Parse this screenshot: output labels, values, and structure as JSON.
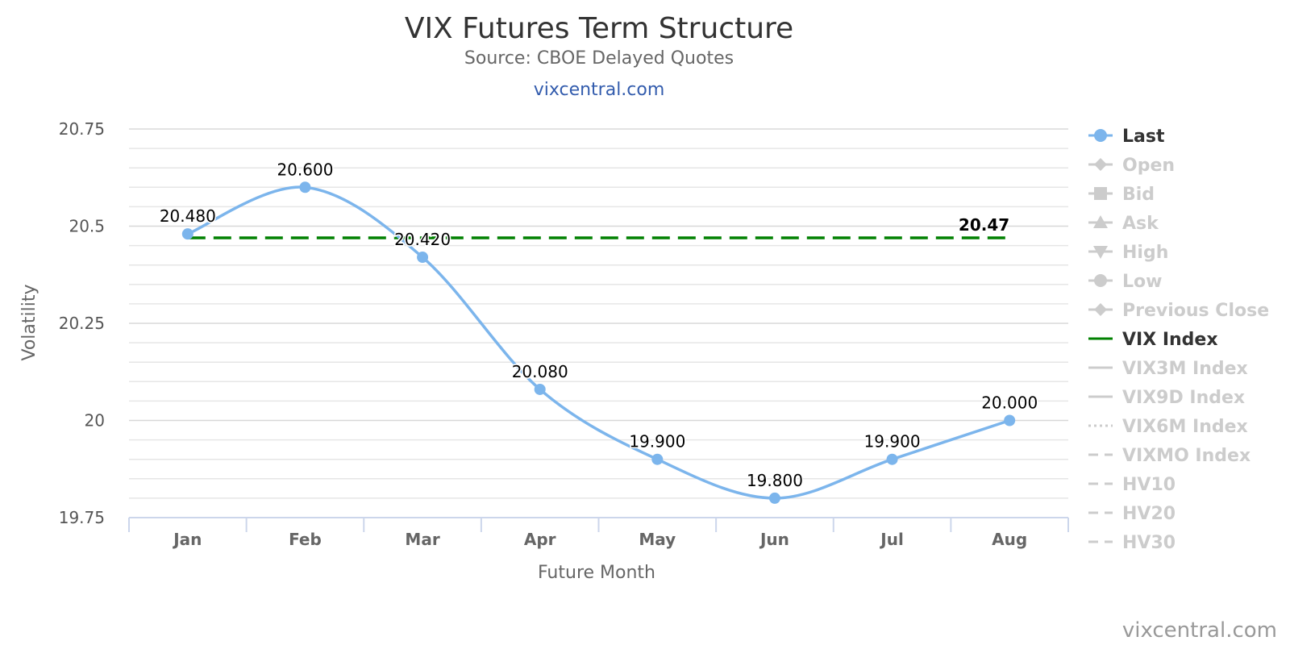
{
  "chart_data": {
    "type": "line",
    "title": "VIX Futures Term Structure",
    "subtitle": "Source: CBOE Delayed Quotes",
    "link_text": "vixcentral.com",
    "credits": "vixcentral.com",
    "xlabel": "Future Month",
    "ylabel": "Volatility",
    "categories": [
      "Jan",
      "Feb",
      "Mar",
      "Apr",
      "May",
      "Jun",
      "Jul",
      "Aug"
    ],
    "ylim": [
      19.75,
      20.75
    ],
    "y_ticks": [
      19.75,
      20,
      20.25,
      20.5,
      20.75
    ],
    "y_tick_labels": [
      "19.75",
      "20",
      "20.25",
      "20.5",
      "20.75"
    ],
    "grid": true,
    "legend_position": "right",
    "series": [
      {
        "name": "Last",
        "values": [
          20.48,
          20.6,
          20.42,
          20.08,
          19.9,
          19.8,
          19.9,
          20.0
        ],
        "data_labels": [
          "20.480",
          "20.600",
          "20.420",
          "20.080",
          "19.900",
          "19.800",
          "19.900",
          "20.000"
        ],
        "color": "#7cb5ec"
      },
      {
        "name": "VIX Index",
        "value": 20.47,
        "end_label": "20.47",
        "color": "#008000"
      }
    ],
    "legend": [
      {
        "name": "Last",
        "active": true,
        "symbol": "circle",
        "color": "#7cb5ec"
      },
      {
        "name": "Open",
        "active": false,
        "symbol": "diamond",
        "color": "#cccccc"
      },
      {
        "name": "Bid",
        "active": false,
        "symbol": "square",
        "color": "#cccccc"
      },
      {
        "name": "Ask",
        "active": false,
        "symbol": "triangle",
        "color": "#cccccc"
      },
      {
        "name": "High",
        "active": false,
        "symbol": "triangle-down",
        "color": "#cccccc"
      },
      {
        "name": "Low",
        "active": false,
        "symbol": "circle",
        "color": "#cccccc"
      },
      {
        "name": "Previous Close",
        "active": false,
        "symbol": "diamond",
        "color": "#cccccc"
      },
      {
        "name": "VIX Index",
        "active": true,
        "symbol": "line",
        "color": "#008000"
      },
      {
        "name": "VIX3M Index",
        "active": false,
        "symbol": "line",
        "color": "#cccccc"
      },
      {
        "name": "VIX9D Index",
        "active": false,
        "symbol": "line",
        "color": "#cccccc"
      },
      {
        "name": "VIX6M Index",
        "active": false,
        "symbol": "dotted",
        "color": "#cccccc"
      },
      {
        "name": "VIXMO Index",
        "active": false,
        "symbol": "dashed",
        "color": "#cccccc"
      },
      {
        "name": "HV10",
        "active": false,
        "symbol": "dashed",
        "color": "#cccccc"
      },
      {
        "name": "HV20",
        "active": false,
        "symbol": "dashed",
        "color": "#cccccc"
      },
      {
        "name": "HV30",
        "active": false,
        "symbol": "dashed",
        "color": "#cccccc"
      }
    ]
  }
}
